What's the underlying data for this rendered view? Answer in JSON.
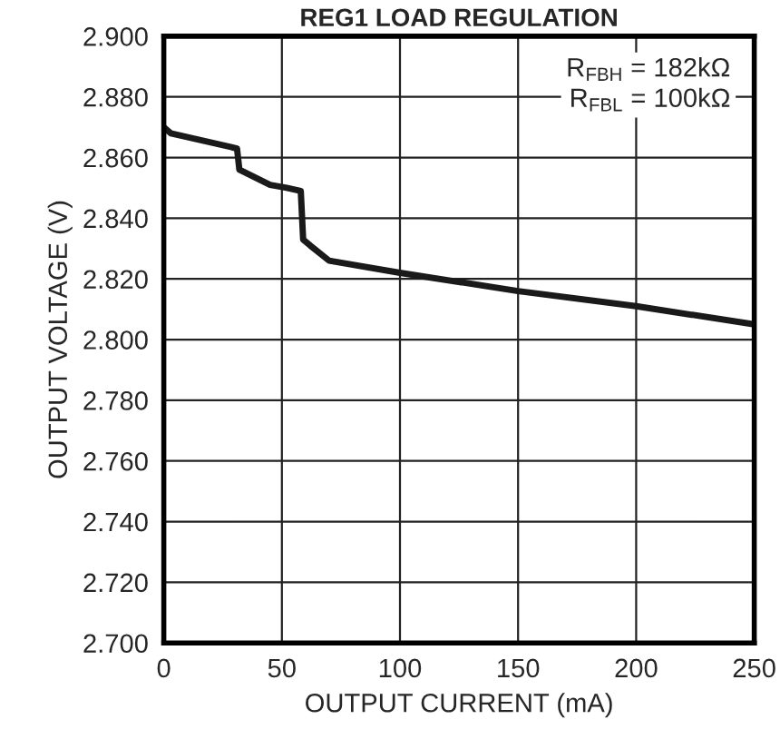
{
  "chart_data": {
    "type": "line",
    "title": "REG1 LOAD REGULATION",
    "xlabel": "OUTPUT CURRENT (mA)",
    "ylabel": "OUTPUT VOLTAGE (V)",
    "x": [
      0,
      3,
      31,
      32,
      45,
      52,
      58,
      59,
      62,
      70,
      100,
      150,
      200,
      250
    ],
    "series": [
      {
        "color": "#1a1a1a",
        "values": [
          2.87,
          2.868,
          2.863,
          2.856,
          2.851,
          2.85,
          2.849,
          2.833,
          2.831,
          2.826,
          2.822,
          2.816,
          2.811,
          2.805
        ]
      }
    ],
    "xlim": [
      0,
      250
    ],
    "xticks": [
      0,
      50,
      100,
      150,
      200,
      250
    ],
    "ylim": [
      2.7,
      2.9
    ],
    "yticks": [
      {
        "value": 2.7,
        "label": "2.700"
      },
      {
        "value": 2.72,
        "label": "2.720"
      },
      {
        "value": 2.74,
        "label": "2.740"
      },
      {
        "value": 2.76,
        "label": "2.760"
      },
      {
        "value": 2.78,
        "label": "2.780"
      },
      {
        "value": 2.8,
        "label": "2.800"
      },
      {
        "value": 2.82,
        "label": "2.820"
      },
      {
        "value": 2.84,
        "label": "2.840"
      },
      {
        "value": 2.86,
        "label": "2.860"
      },
      {
        "value": 2.88,
        "label": "2.880"
      },
      {
        "value": 2.9,
        "label": "2.900"
      }
    ],
    "annotations": [
      "R$_{FBH}$ = 182kΩ\nR$_{FBL}$ = 100kΩ"
    ],
    "grid": true,
    "marker": "none",
    "line_style": "solid",
    "legend": false
  }
}
